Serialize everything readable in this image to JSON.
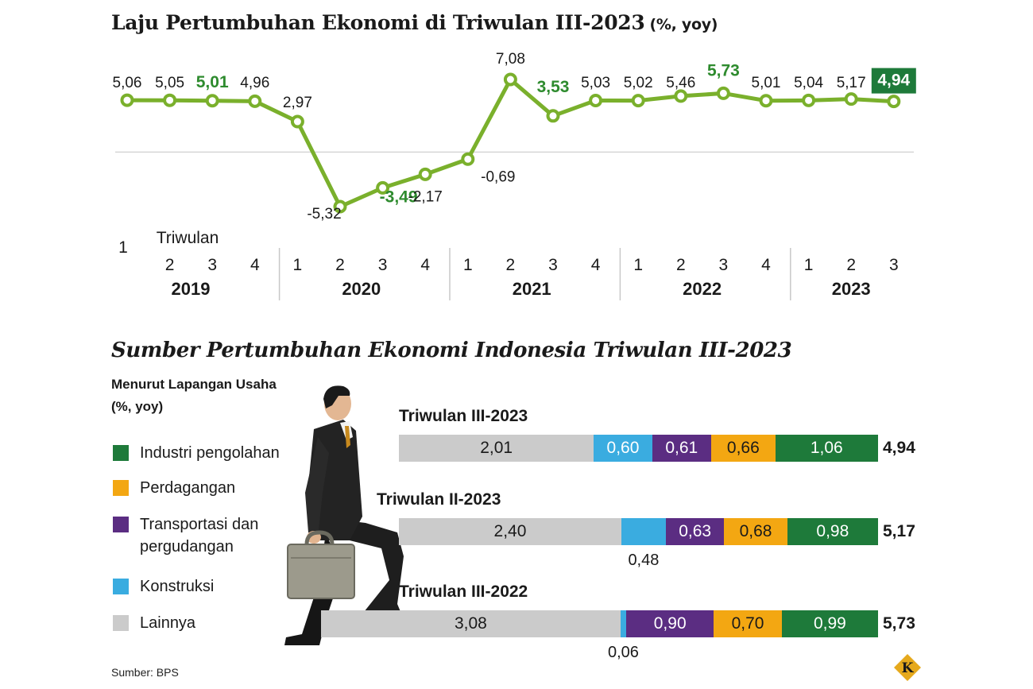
{
  "colors": {
    "line": "#7ab02c",
    "highlight_text": "#2e8b2e",
    "highlight_box": "#1e7a3a",
    "industri": "#1e7a3a",
    "perdagangan": "#f3a712",
    "transportasi": "#5b2d82",
    "konstruksi": "#3aace0",
    "lainnya": "#cbcbcb"
  },
  "chart1": {
    "title": "Laju Pertumbuhan Ekonomi di Triwulan III-2023",
    "unit": "(%, yoy)",
    "axis_label": "Triwulan",
    "years": [
      "2019",
      "2020",
      "2021",
      "2022",
      "2023"
    ]
  },
  "chart2": {
    "title": "Sumber Pertumbuhan Ekonomi Indonesia Triwulan III-2023",
    "legend_title": "Menurut Lapangan Usaha",
    "legend_unit": "(%, yoy)",
    "legend": [
      {
        "label": "Industri pengolahan",
        "color": "#1e7a3a"
      },
      {
        "label": "Perdagangan",
        "color": "#f3a712"
      },
      {
        "label": "Transportasi dan pergudangan",
        "color": "#5b2d82"
      },
      {
        "label": "Konstruksi",
        "color": "#3aace0"
      },
      {
        "label": "Lainnya",
        "color": "#cbcbcb"
      }
    ]
  },
  "source": "Sumber: BPS",
  "logo_letter": "K",
  "chart_data": [
    {
      "type": "line",
      "title": "Laju Pertumbuhan Ekonomi di Triwulan III-2023 (%, yoy)",
      "xlabel": "Triwulan",
      "ylabel": "",
      "x": [
        "1",
        "2",
        "3",
        "4",
        "1",
        "2",
        "3",
        "4",
        "1",
        "2",
        "3",
        "4",
        "1",
        "2",
        "3",
        "4",
        "1",
        "2",
        "3"
      ],
      "x_groups": [
        {
          "year": "2019",
          "count": 4
        },
        {
          "year": "2020",
          "count": 4
        },
        {
          "year": "2021",
          "count": 4
        },
        {
          "year": "2022",
          "count": 4
        },
        {
          "year": "2023",
          "count": 3
        }
      ],
      "labels": [
        "5,06",
        "5,05",
        "5,01",
        "4,96",
        "2,97",
        "-5,32",
        "-3,49",
        "-2,17",
        "-0,69",
        "7,08",
        "3,53",
        "5,03",
        "5,02",
        "5,46",
        "5,73",
        "5,01",
        "5,04",
        "5,17",
        "4,94"
      ],
      "values": [
        5.06,
        5.05,
        5.01,
        4.96,
        2.97,
        -5.32,
        -3.49,
        -2.17,
        -0.69,
        7.08,
        3.53,
        5.03,
        5.02,
        5.46,
        5.73,
        5.01,
        5.04,
        5.17,
        4.94
      ],
      "highlighted": [
        2,
        6,
        10,
        14,
        18
      ],
      "boxed": [
        18
      ],
      "ylim": [
        -5.32,
        7.08
      ],
      "zero_line": true
    },
    {
      "type": "bar",
      "stacked": true,
      "orientation": "horizontal",
      "title": "Sumber Pertumbuhan Ekonomi Indonesia Triwulan III-2023",
      "categories": [
        "Triwulan III-2023",
        "Triwulan II-2023",
        "Triwulan III-2022"
      ],
      "series": [
        {
          "name": "Lainnya",
          "values": [
            2.01,
            2.4,
            3.08
          ],
          "labels": [
            "2,01",
            "2,40",
            "3,08"
          ],
          "color": "#cbcbcb"
        },
        {
          "name": "Konstruksi",
          "values": [
            0.6,
            0.48,
            0.06
          ],
          "labels": [
            "0,60",
            "0,48",
            "0,06"
          ],
          "color": "#3aace0"
        },
        {
          "name": "Transportasi dan pergudangan",
          "values": [
            0.61,
            0.63,
            0.9
          ],
          "labels": [
            "0,61",
            "0,63",
            "0,90"
          ],
          "color": "#5b2d82"
        },
        {
          "name": "Perdagangan",
          "values": [
            0.66,
            0.68,
            0.7
          ],
          "labels": [
            "0,66",
            "0,68",
            "0,70"
          ],
          "color": "#f3a712"
        },
        {
          "name": "Industri pengolahan",
          "values": [
            1.06,
            0.98,
            0.99
          ],
          "labels": [
            "1,06",
            "0,98",
            "0,99"
          ],
          "color": "#1e7a3a"
        }
      ],
      "totals": [
        "4,94",
        "5,17",
        "5,73"
      ],
      "labels_below": [
        false,
        true,
        true
      ]
    }
  ]
}
